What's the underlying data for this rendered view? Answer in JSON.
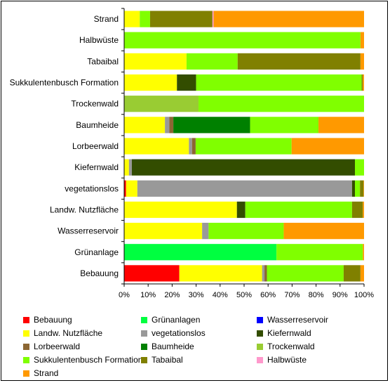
{
  "chart_data": {
    "type": "bar",
    "orientation": "horizontal",
    "stacked": "percent",
    "categories": [
      "Strand",
      "Halbwüste",
      "Tabaibal",
      "Sukkulentenbusch Formation",
      "Trockenwald",
      "Baumheide",
      "Lorbeerwald",
      "Kiefernwald",
      "vegetationslos",
      "Landw. Nutzfläche",
      "Wasserreservoir",
      "Grünanlage",
      "Bebauung"
    ],
    "xlim": [
      0,
      100
    ],
    "xticks": [
      "0%",
      "10%",
      "20%",
      "30%",
      "40%",
      "50%",
      "60%",
      "70%",
      "80%",
      "90%",
      "100%"
    ],
    "legend_position": "bottom",
    "grid": false,
    "series": [
      {
        "name": "Bebauung",
        "color": "#ff0000",
        "values": [
          0,
          0,
          0,
          0,
          0,
          0,
          0,
          0,
          0.8,
          0,
          0,
          0,
          23
        ]
      },
      {
        "name": "Grünanlagen",
        "color": "#00ff40",
        "values": [
          0,
          0,
          0,
          0,
          0,
          0,
          0,
          0,
          0,
          0,
          0,
          63.5,
          0
        ]
      },
      {
        "name": "Wasserreservoir",
        "color": "#0000ff",
        "values": [
          0,
          0,
          0,
          0,
          0,
          0,
          0,
          0,
          0,
          0,
          0,
          0,
          0
        ]
      },
      {
        "name": "Landw. Nutzfläche",
        "color": "#ffff00",
        "values": [
          6.5,
          0,
          26,
          22,
          0,
          17,
          27,
          2,
          4.7,
          47,
          32.5,
          0,
          34.5
        ]
      },
      {
        "name": "vegetationslos",
        "color": "#999999",
        "values": [
          0,
          0,
          0,
          0,
          0,
          1.8,
          1.3,
          1.2,
          89.5,
          0,
          2.7,
          0,
          1
        ]
      },
      {
        "name": "Kiefernwald",
        "color": "#334d00",
        "values": [
          0,
          0,
          0,
          8,
          0,
          0,
          0,
          93,
          1.2,
          3.5,
          0,
          0,
          0
        ]
      },
      {
        "name": "Lorbeerwald",
        "color": "#8c6633",
        "values": [
          0,
          0,
          0,
          0,
          0,
          1.7,
          1.5,
          0,
          0,
          0,
          0,
          0,
          1
        ]
      },
      {
        "name": "Baumheide",
        "color": "#008000",
        "values": [
          0,
          0,
          0,
          0,
          0,
          32,
          0,
          0,
          0,
          0,
          0,
          0,
          0
        ]
      },
      {
        "name": "Trockenwald",
        "color": "#99cc33",
        "values": [
          0,
          0,
          0,
          0,
          31,
          0,
          0,
          0,
          0,
          0,
          0,
          0,
          0
        ]
      },
      {
        "name": "Sukkulentenbusch Formation",
        "color": "#80ff00",
        "values": [
          4.3,
          98.5,
          21.3,
          69,
          69,
          28.5,
          40,
          3.8,
          2.1,
          44.5,
          31.3,
          36,
          32
        ]
      },
      {
        "name": "Tabaibal",
        "color": "#808000",
        "values": [
          26,
          0,
          51.2,
          0.5,
          0,
          0,
          0,
          0,
          1.5,
          4.5,
          0,
          0,
          7
        ]
      },
      {
        "name": "Halbwüste",
        "color": "#ff99cc",
        "values": [
          0.5,
          0,
          0,
          0,
          0,
          0,
          0,
          0,
          0,
          0,
          0,
          0,
          0
        ]
      },
      {
        "name": "Strand",
        "color": "#ff9900",
        "values": [
          62.7,
          1.5,
          1.5,
          0.5,
          0,
          19,
          30.2,
          0,
          0.2,
          0.5,
          33.5,
          0.5,
          1.5
        ]
      }
    ]
  }
}
